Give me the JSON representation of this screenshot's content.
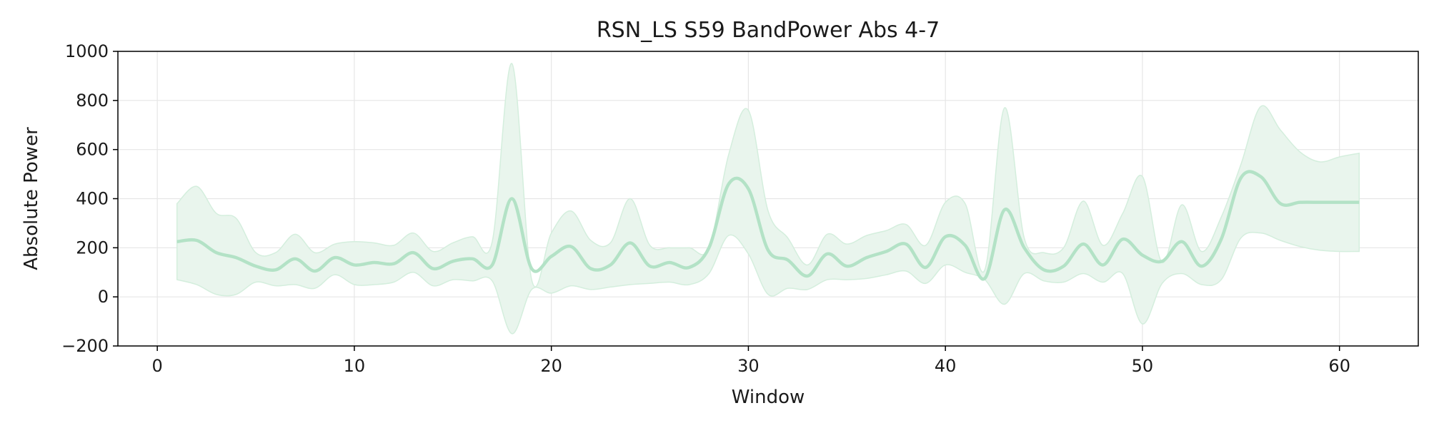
{
  "chart_data": {
    "type": "line",
    "title": "RSN_LS S59 BandPower Abs 4-7",
    "xlabel": "Window",
    "ylabel": "Absolute Power",
    "xlim": [
      -2,
      64
    ],
    "ylim": [
      -200,
      1000
    ],
    "xticks": [
      0,
      10,
      20,
      30,
      40,
      50,
      60
    ],
    "yticks": [
      -200,
      0,
      200,
      400,
      600,
      800,
      1000
    ],
    "ytick_labels": [
      "−200",
      "0",
      "200",
      "400",
      "600",
      "800",
      "1000"
    ],
    "grid": true,
    "legend": "none",
    "colors": {
      "line": "#b3e2c6",
      "band": "#e9f5ed",
      "band_edge": "#d4eedd",
      "grid": "#e6e6e6",
      "axis": "#000000"
    },
    "series": [
      {
        "x": [
          1,
          2,
          3,
          4,
          5,
          6,
          7,
          8,
          9,
          10,
          11,
          12,
          13,
          14,
          15,
          16,
          17,
          18,
          19,
          20,
          21,
          22,
          23,
          24,
          25,
          26,
          27,
          28,
          29,
          30,
          31,
          32,
          33,
          34,
          35,
          36,
          37,
          38,
          39,
          40,
          41,
          42,
          43,
          44,
          45,
          46,
          47,
          48,
          49,
          50,
          51,
          52,
          53,
          54,
          55,
          56,
          57,
          58,
          59,
          60,
          61
        ],
        "mean": [
          225,
          230,
          180,
          160,
          125,
          110,
          155,
          105,
          160,
          130,
          140,
          135,
          180,
          115,
          145,
          155,
          130,
          400,
          115,
          165,
          205,
          115,
          130,
          220,
          125,
          140,
          120,
          200,
          460,
          440,
          190,
          150,
          85,
          175,
          125,
          160,
          185,
          215,
          120,
          245,
          210,
          75,
          355,
          200,
          110,
          125,
          215,
          130,
          235,
          170,
          145,
          225,
          125,
          235,
          485,
          490,
          380,
          385,
          385,
          385,
          385
        ],
        "upper": [
          380,
          450,
          340,
          320,
          180,
          180,
          255,
          180,
          215,
          225,
          220,
          210,
          260,
          185,
          220,
          245,
          225,
          950,
          70,
          260,
          350,
          230,
          220,
          400,
          210,
          200,
          200,
          200,
          580,
          760,
          350,
          240,
          130,
          255,
          215,
          250,
          270,
          295,
          210,
          385,
          380,
          110,
          770,
          240,
          180,
          200,
          390,
          210,
          340,
          490,
          140,
          375,
          185,
          325,
          540,
          775,
          680,
          590,
          550,
          570,
          585
        ],
        "lower": [
          70,
          50,
          10,
          10,
          60,
          45,
          50,
          35,
          90,
          50,
          50,
          60,
          100,
          45,
          70,
          65,
          65,
          -150,
          30,
          15,
          45,
          30,
          40,
          50,
          55,
          60,
          50,
          95,
          250,
          175,
          10,
          35,
          30,
          70,
          70,
          75,
          90,
          105,
          55,
          130,
          100,
          70,
          -30,
          95,
          65,
          60,
          95,
          60,
          95,
          -110,
          55,
          95,
          50,
          70,
          240,
          260,
          230,
          205,
          190,
          185,
          185
        ]
      }
    ]
  }
}
